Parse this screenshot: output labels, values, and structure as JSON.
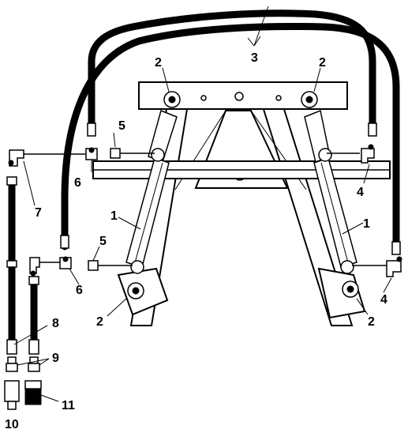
{
  "callouts": {
    "cylinder": "1",
    "pin": "2",
    "hose_long": "3",
    "elbow_right": "4",
    "adapter": "5",
    "tee": "6",
    "elbow_left": "7",
    "hose_short": "8",
    "nipple": "9",
    "coupler_male": "10",
    "coupler_female": "11"
  },
  "colors": {
    "ink": "#000000",
    "paper": "#ffffff"
  }
}
